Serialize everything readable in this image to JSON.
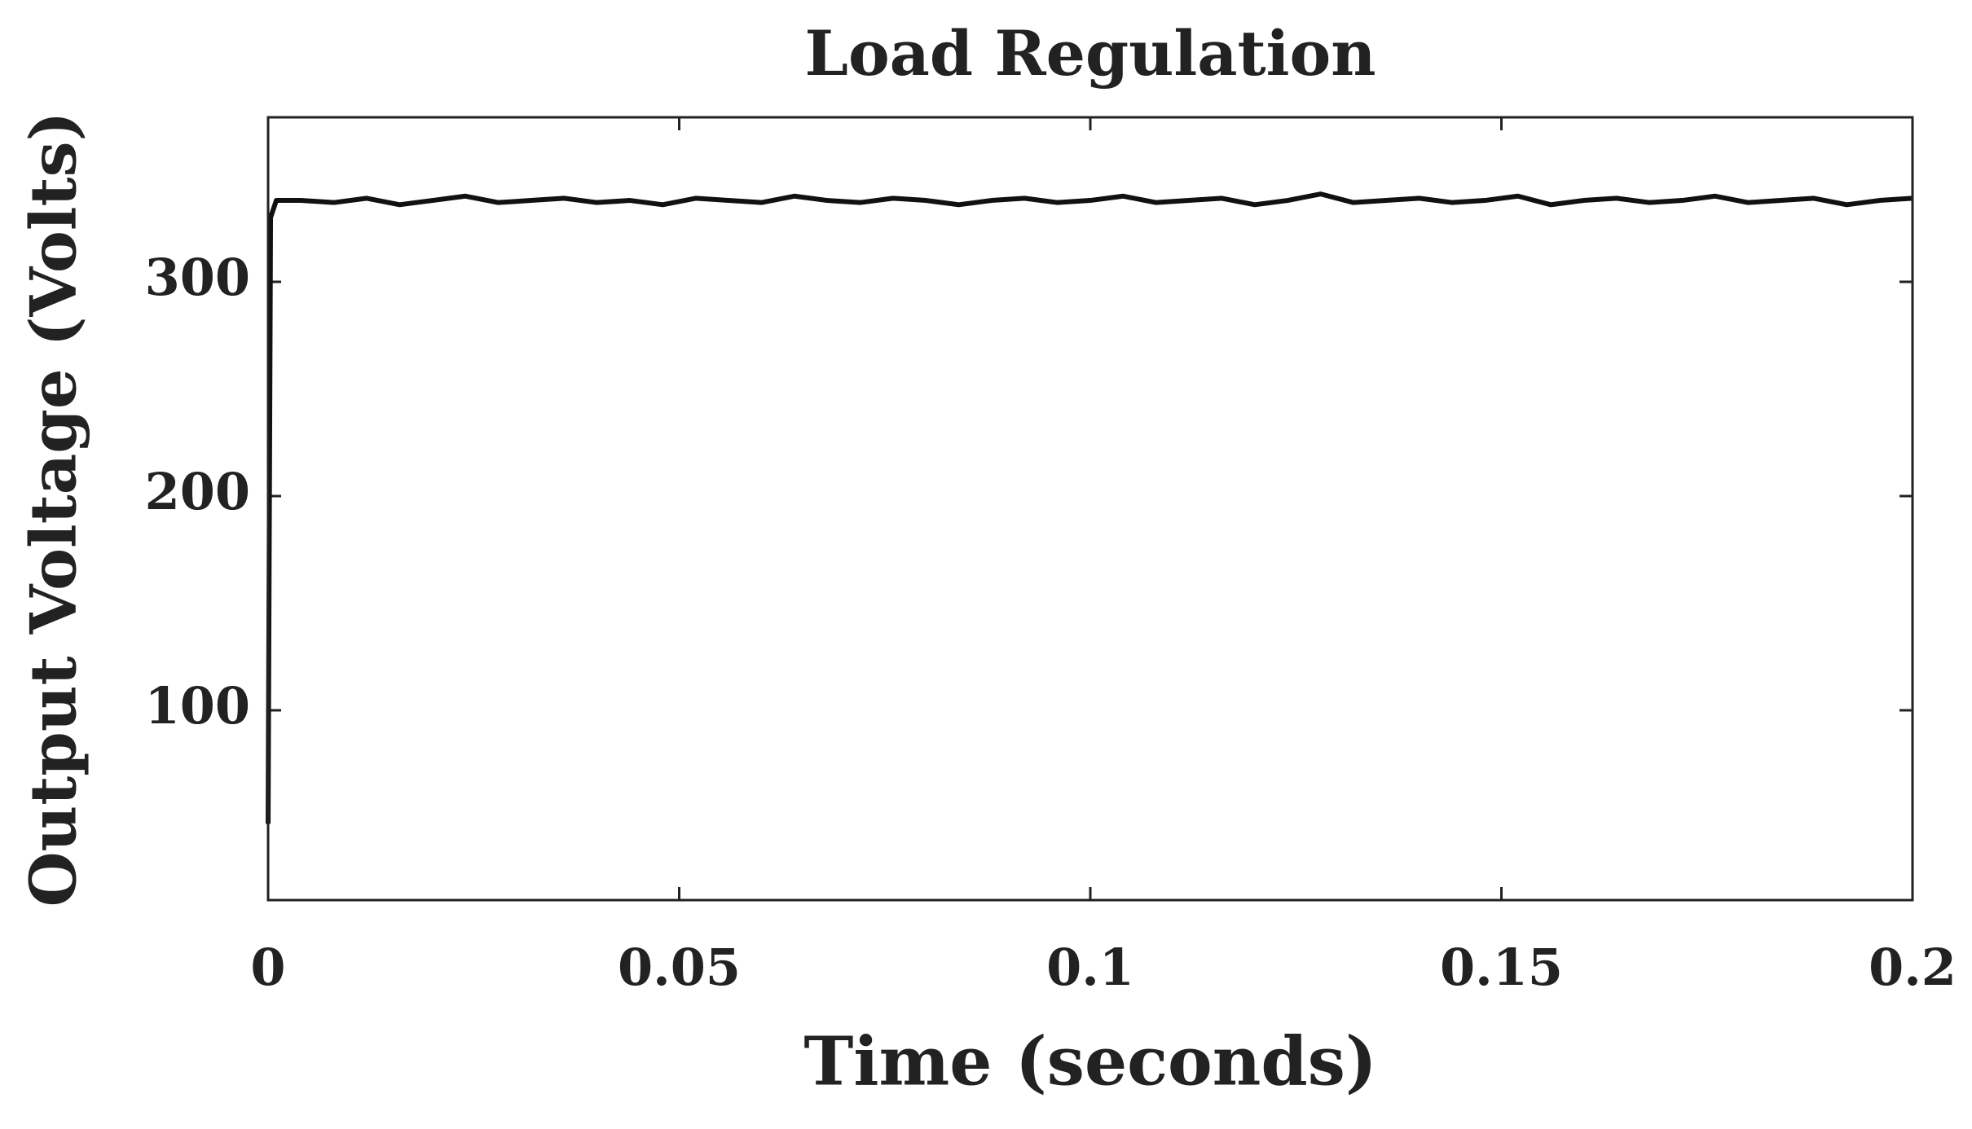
{
  "chart_data": {
    "type": "line",
    "title": "Load Regulation",
    "x_label": "Time (seconds)",
    "y_label": "Output Voltage (Volts)",
    "x": [
      0,
      0.0003,
      0.001,
      0.004,
      0.008,
      0.012,
      0.016,
      0.02,
      0.024,
      0.028,
      0.032,
      0.036,
      0.04,
      0.044,
      0.048,
      0.052,
      0.056,
      0.06,
      0.064,
      0.068,
      0.072,
      0.076,
      0.08,
      0.084,
      0.088,
      0.092,
      0.096,
      0.1,
      0.104,
      0.108,
      0.112,
      0.116,
      0.12,
      0.124,
      0.128,
      0.132,
      0.136,
      0.14,
      0.144,
      0.148,
      0.152,
      0.156,
      0.16,
      0.164,
      0.168,
      0.172,
      0.176,
      0.18,
      0.184,
      0.188,
      0.192,
      0.196,
      0.2
    ],
    "series": [
      {
        "color": "#111111",
        "values": [
          47,
          330,
          338,
          338,
          337,
          339,
          336,
          338,
          340,
          337,
          338,
          339,
          337,
          338,
          336,
          339,
          338,
          337,
          340,
          338,
          337,
          339,
          338,
          336,
          338,
          339,
          337,
          338,
          340,
          337,
          338,
          339,
          336,
          338,
          341,
          337,
          338,
          339,
          337,
          338,
          340,
          336,
          338,
          339,
          337,
          338,
          340,
          337,
          338,
          339,
          336,
          338,
          339
        ]
      }
    ],
    "xlim": [
      0,
      0.2
    ],
    "xticks": [
      0,
      0.05,
      0.1,
      0.15,
      0.2
    ],
    "ylim": [
      11.4,
      376.8
    ],
    "yticks": [
      100,
      200,
      300
    ],
    "grid": false
  }
}
